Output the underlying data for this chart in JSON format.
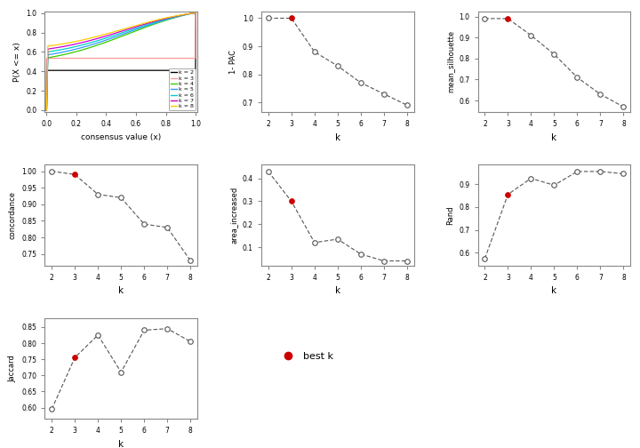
{
  "ecdf_colors": {
    "k2": "#000000",
    "k3": "#FF9999",
    "k4": "#33CC00",
    "k5": "#3399FF",
    "k6": "#00CCCC",
    "k7": "#CC00CC",
    "k8": "#FFCC00"
  },
  "pac_k": [
    2,
    3,
    4,
    5,
    6,
    7,
    8
  ],
  "pac_values": [
    1.0,
    1.0,
    0.88,
    0.83,
    0.77,
    0.73,
    0.69
  ],
  "pac_best_k": 3,
  "silhouette_k": [
    2,
    3,
    4,
    5,
    6,
    7,
    8
  ],
  "silhouette_values": [
    0.99,
    0.99,
    0.91,
    0.82,
    0.71,
    0.63,
    0.57
  ],
  "silhouette_best_k": 3,
  "concordance_k": [
    2,
    3,
    4,
    5,
    6,
    7,
    8
  ],
  "concordance_values": [
    1.0,
    0.99,
    0.93,
    0.92,
    0.84,
    0.83,
    0.73
  ],
  "concordance_best_k": 3,
  "area_k": [
    2,
    3,
    4,
    5,
    6,
    7,
    8
  ],
  "area_values": [
    0.43,
    0.3,
    0.12,
    0.135,
    0.07,
    0.04,
    0.04
  ],
  "area_best_k": 3,
  "rand_k": [
    2,
    3,
    4,
    5,
    6,
    7,
    8
  ],
  "rand_values": [
    0.575,
    0.855,
    0.925,
    0.895,
    0.955,
    0.955,
    0.945
  ],
  "rand_best_k": 3,
  "jaccard_k": [
    2,
    3,
    4,
    5,
    6,
    7,
    8
  ],
  "jaccard_values": [
    0.595,
    0.755,
    0.825,
    0.71,
    0.84,
    0.845,
    0.805
  ],
  "jaccard_best_k": 3,
  "bg_color": "#FFFFFF",
  "line_color": "#555555",
  "open_circle_facecolor": "#FFFFFF",
  "red_dot_color": "#CC0000",
  "spine_color": "#888888",
  "axis_label_size": 7,
  "tick_label_size": 6,
  "marker_size": 4
}
